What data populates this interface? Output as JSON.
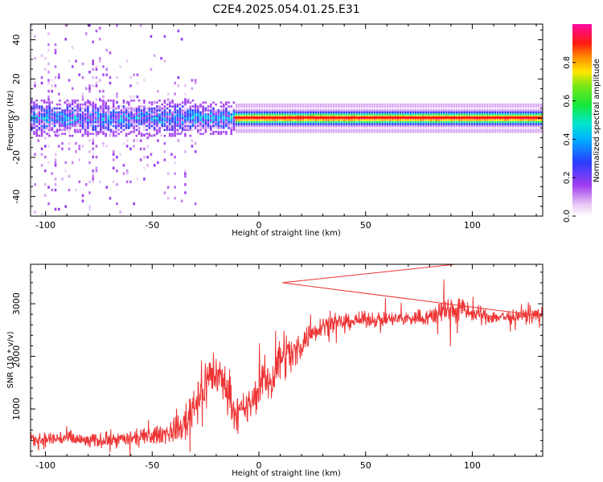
{
  "title": "C2E4.2025.054.01.25.E31",
  "chart_data": [
    {
      "type": "heatmap",
      "name": "spectrogram",
      "xlabel": "Height of straight line (km)",
      "ylabel": "Frequency (Hz)",
      "xlim": [
        -107,
        133
      ],
      "ylim": [
        -50,
        48
      ],
      "xticks": [
        -100,
        -50,
        0,
        50,
        100
      ],
      "yticks": [
        -40,
        -20,
        0,
        20,
        40
      ],
      "grid": false,
      "colorbar": {
        "label": "Normalized spectral amplitude",
        "range": [
          0,
          1
        ],
        "ticks": [
          "0.0",
          "0.2",
          "0.4",
          "0.6",
          "0.8"
        ],
        "colormap": "rainbow (white–violet–blue–cyan–green–yellow–red–magenta)"
      },
      "bands": [
        {
          "x": [
            -107,
            -30
          ],
          "center_freq": 0,
          "half_width_hz": 6,
          "amplitude": "low–moderate (0.1–0.5)",
          "scatter": "broad speckle up to ±48 Hz"
        },
        {
          "x": [
            -30,
            -12
          ],
          "center_freq": 0,
          "half_width_hz": 5,
          "amplitude": "moderate (0.2–0.5)"
        },
        {
          "x": [
            -12,
            133
          ],
          "center_freq": 0,
          "half_width_hz": 4,
          "amplitude": "high (0.8–1.0) along 0 Hz"
        }
      ]
    },
    {
      "type": "line",
      "name": "snr",
      "xlabel": "Height of straight line (km)",
      "ylabel": "SNR (10 * v/v)",
      "xlim": [
        -107,
        133
      ],
      "ylim": [
        100,
        3750
      ],
      "xticks": [
        -100,
        -50,
        0,
        50,
        100
      ],
      "yticks": [
        1000,
        2000,
        3000
      ],
      "grid": false,
      "series": [
        {
          "color": "#ee3333",
          "x": [
            -107,
            -100,
            -90,
            -80,
            -70,
            -60,
            -50,
            -42,
            -36,
            -31,
            -27,
            -22,
            -18,
            -14,
            -11,
            -6,
            -2,
            2,
            6,
            11,
            16,
            20,
            25,
            30,
            40,
            50,
            60,
            70,
            80,
            85,
            90,
            95,
            100,
            110,
            120,
            133
          ],
          "y": [
            400,
            420,
            450,
            380,
            420,
            430,
            480,
            560,
            650,
            1050,
            1350,
            1700,
            1600,
            1300,
            900,
            1000,
            1200,
            1600,
            1500,
            2100,
            2000,
            2250,
            2450,
            2600,
            2650,
            2700,
            2700,
            2720,
            2750,
            2850,
            2900,
            2900,
            2800,
            2750,
            2750,
            2800
          ],
          "noise": [
            150,
            160,
            170,
            150,
            150,
            160,
            180,
            220,
            280,
            480,
            520,
            520,
            450,
            380,
            320,
            350,
            380,
            400,
            400,
            550,
            400,
            300,
            230,
            200,
            160,
            150,
            150,
            150,
            180,
            250,
            300,
            250,
            180,
            150,
            140,
            140
          ]
        }
      ],
      "annotations": [
        {
          "x": 11,
          "y": 3400,
          "text": ""
        },
        {
          "x": 92,
          "y": 3750,
          "text": ""
        }
      ]
    }
  ]
}
